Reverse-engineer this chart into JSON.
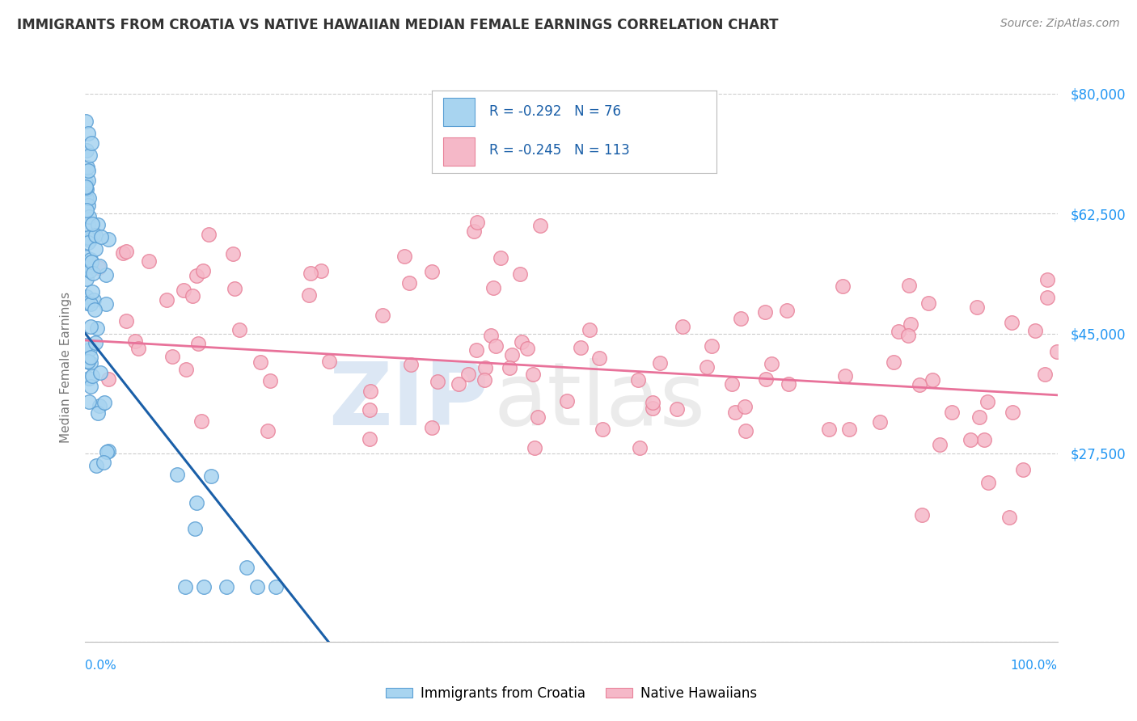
{
  "title": "IMMIGRANTS FROM CROATIA VS NATIVE HAWAIIAN MEDIAN FEMALE EARNINGS CORRELATION CHART",
  "source": "Source: ZipAtlas.com",
  "ylabel": "Median Female Earnings",
  "yticks": [
    0,
    27500,
    45000,
    62500,
    80000
  ],
  "ytick_labels": [
    "",
    "$27,500",
    "$45,000",
    "$62,500",
    "$80,000"
  ],
  "xlim": [
    0,
    1.0
  ],
  "ylim": [
    0,
    80000
  ],
  "series": [
    {
      "label": "Immigrants from Croatia",
      "R": -0.292,
      "N": 76,
      "scatter_color": "#a8d4f0",
      "scatter_edge": "#5b9fd4",
      "trend_color": "#1a5fa8"
    },
    {
      "label": "Native Hawaiians",
      "R": -0.245,
      "N": 113,
      "scatter_color": "#f5b8c8",
      "scatter_edge": "#e8829a",
      "trend_color": "#e8729a"
    }
  ],
  "legend_text_color": "#1a5fa8",
  "legend_N_color": "#1a5fa8",
  "watermark_zip": "ZIP",
  "watermark_atlas": "atlas",
  "watermark_color": "#d0dff0",
  "bg_color": "#ffffff",
  "grid_color": "#cccccc",
  "axis_color": "#2196F3",
  "title_color": "#333333",
  "source_color": "#888888",
  "ylabel_color": "#777777"
}
